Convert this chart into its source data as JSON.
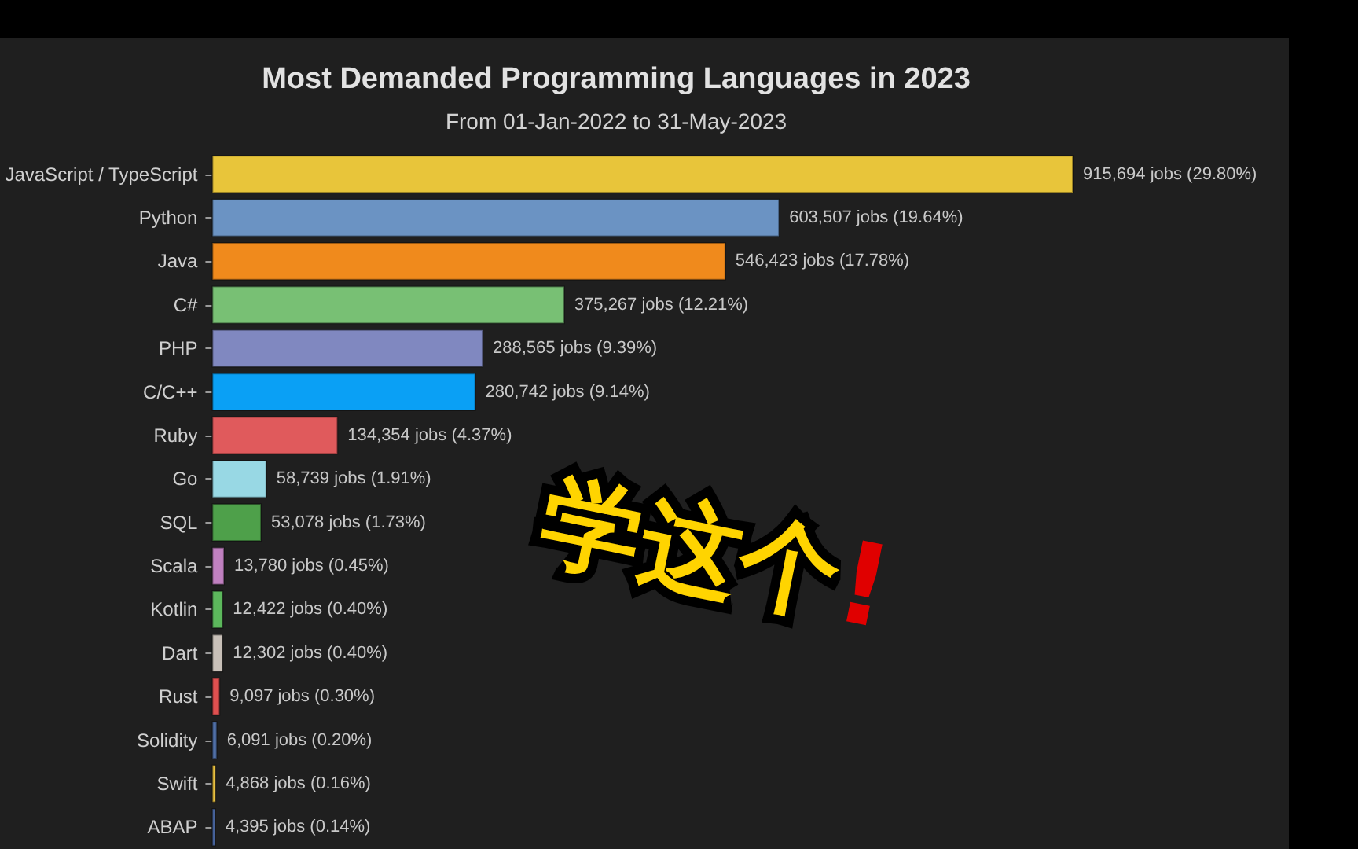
{
  "chart_data": {
    "type": "bar",
    "orientation": "horizontal",
    "title": "Most Demanded Programming Languages in 2023",
    "subtitle": "From 01-Jan-2022 to 31-May-2023",
    "categories": [
      "JavaScript / TypeScript",
      "Python",
      "Java",
      "C#",
      "PHP",
      "C/C++",
      "Ruby",
      "Go",
      "SQL",
      "Scala",
      "Kotlin",
      "Dart",
      "Rust",
      "Solidity",
      "Swift",
      "ABAP"
    ],
    "values": [
      915694,
      603507,
      546423,
      375267,
      288565,
      280742,
      134354,
      58739,
      53078,
      13780,
      12422,
      12302,
      9097,
      6091,
      4868,
      4395
    ],
    "colors": [
      "#e8c53a",
      "#6b93c3",
      "#f08a1c",
      "#78c074",
      "#8088c0",
      "#0aa0f5",
      "#e05a5c",
      "#98d8e4",
      "#4ea04a",
      "#c080c0",
      "#5cb85c",
      "#c8c0b8",
      "#e05050",
      "#5070a8",
      "#e8c040",
      "#5070b0"
    ],
    "value_labels": [
      "915,694 jobs (29.80%)",
      "603,507 jobs (19.64%)",
      "546,423 jobs (17.78%)",
      "375,267 jobs (12.21%)",
      "288,565 jobs (9.39%)",
      "280,742 jobs (9.14%)",
      "134,354 jobs (4.37%)",
      "58,739 jobs (1.91%)",
      "53,078 jobs (1.73%)",
      "13,780 jobs (0.45%)",
      "12,422 jobs (0.40%)",
      "12,302 jobs (0.40%)",
      "9,097 jobs (0.30%)",
      "6,091 jobs (0.20%)",
      "4,868 jobs (0.16%)",
      "4,395 jobs (0.14%)"
    ],
    "annotations": [
      "学这个!"
    ]
  }
}
